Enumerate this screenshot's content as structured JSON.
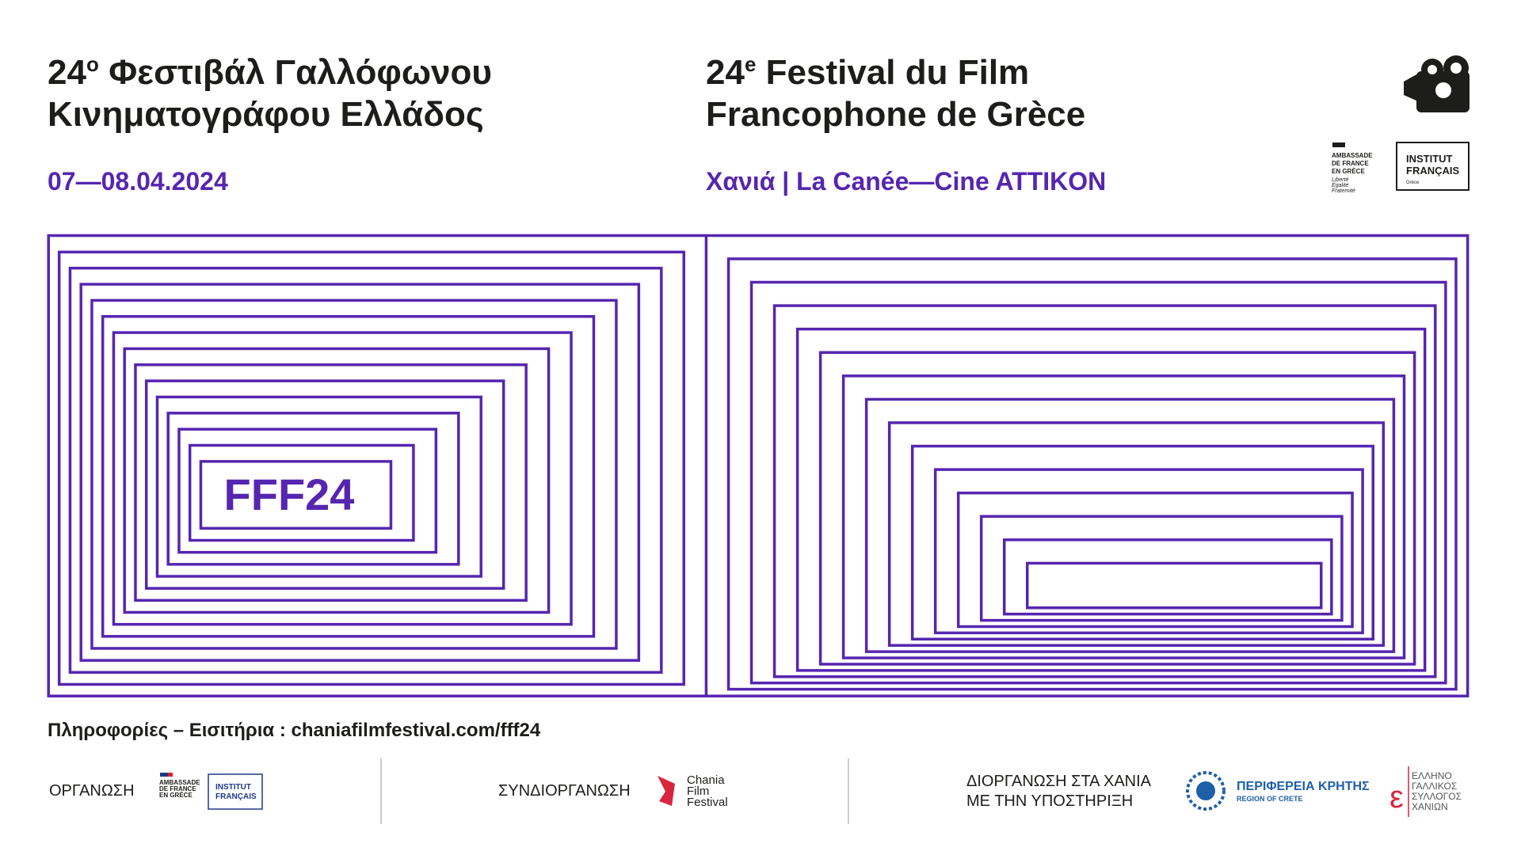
{
  "header": {
    "greek_title": {
      "number": "24",
      "superscript": "ο",
      "line1_rest": " Φεστιβάλ Γαλλόφωνου",
      "line2": "Κινηματογράφου Ελλάδος"
    },
    "french_title": {
      "number": "24",
      "superscript": "e",
      "line1_rest": " Festival du Film",
      "line2": "Francophone de Grèce"
    },
    "dates": "07—08.04.2024",
    "venue": "Χανιά | La Canée—Cine ATTIKON"
  },
  "top_logos": {
    "embassy": {
      "lines": [
        "AMBASSADE",
        "DE FRANCE",
        "EN GRÈCE"
      ],
      "motto": [
        "Liberté",
        "Égalité",
        "Fraternité"
      ]
    },
    "institut": {
      "lines": [
        "INSTITUT",
        "FRANÇAIS"
      ],
      "sub": "Grèce"
    }
  },
  "artwork": {
    "label": "FFF24"
  },
  "info": "Πληροφορίες – Εισιτήρια : chaniafilmfestival.com/fff24",
  "footer": {
    "organisation": {
      "label": "ΟΡΓΑΝΩΣΗ",
      "embassy_lines": [
        "AMBASSADE",
        "DE FRANCE",
        "EN GRÈCE"
      ],
      "institut_lines": [
        "INSTITUT",
        "FRANÇAIS"
      ]
    },
    "co_organisation": {
      "label": "ΣΥΝΔΙΟΡΓΑΝΩΣΗ",
      "logo_lines": [
        "Chania",
        "Film",
        "Festival"
      ]
    },
    "support": {
      "label_lines": [
        "ΔΙΟΡΓΑΝΩΣΗ ΣΤΑ ΧΑΝΙΑ",
        "ΜΕ ΤΗΝ ΥΠΟΣΤΗΡΙΞΗ"
      ],
      "region": {
        "name": "ΠΕΡΙΦΕΡΕΙΑ ΚΡΗΤΗΣ",
        "sub": "REGION OF CRETE"
      },
      "association": {
        "lines": [
          "ΕΛΛΗΝΟ",
          "ΓΑΛΛΙΚΟΣ",
          "ΣΥΛΛΟΓΟΣ",
          "ΧΑΝΙΩΝ"
        ]
      }
    }
  }
}
